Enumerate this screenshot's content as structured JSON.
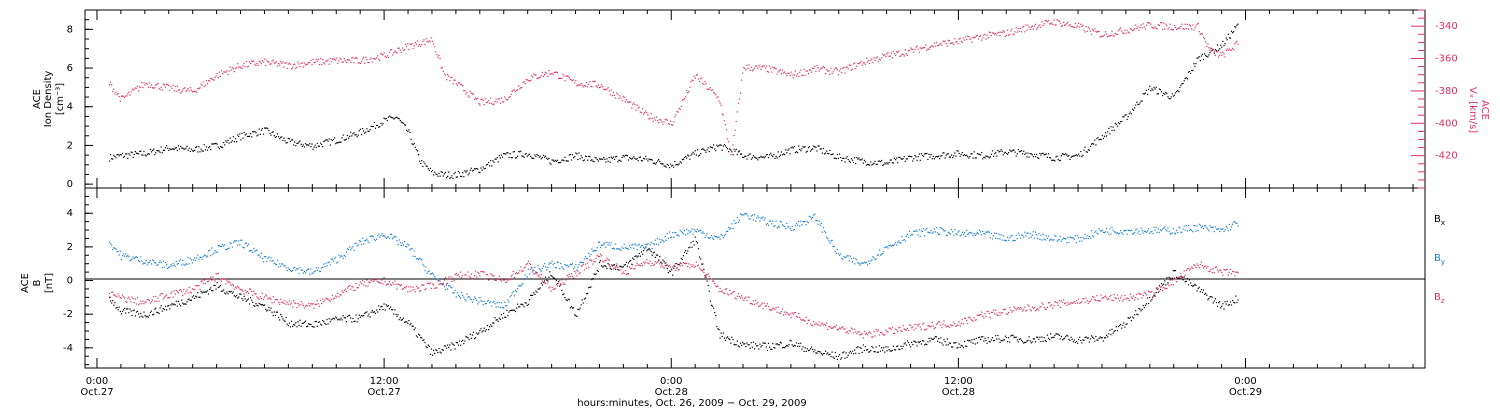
{
  "colors": {
    "axis": "#000000",
    "density": "#000000",
    "velocity": "#e0305f",
    "bx": "#000000",
    "by": "#1a7fd4",
    "bz": "#e0305f"
  },
  "x_axis": {
    "ticks": [
      {
        "h": 0,
        "time": "0:00",
        "day": "Oct.27"
      },
      {
        "h": 12,
        "time": "12:00",
        "day": "Oct.27"
      },
      {
        "h": 24,
        "time": "0:00",
        "day": "Oct.28"
      },
      {
        "h": 36,
        "time": "12:00",
        "day": "Oct.28"
      },
      {
        "h": 48,
        "time": "0:00",
        "day": "Oct.29"
      }
    ],
    "label": "hours:minutes, Oct. 26, 2009 − Oct. 29, 2009",
    "range_hours": [
      -0.5,
      55.5
    ]
  },
  "chart_data": [
    {
      "type": "scatter",
      "panel": "top",
      "ylabel_left": [
        "ACE",
        "Ion Density",
        "[cm⁻³]"
      ],
      "ylabel_right": [
        "ACE",
        "Vₓ [km/s]"
      ],
      "ylim_left": [
        -0.2,
        9.0
      ],
      "yticks_left": [
        0,
        2,
        4,
        6,
        8
      ],
      "ylim_right": [
        -440,
        -330
      ],
      "yticks_right": [
        -340,
        -360,
        -380,
        -400,
        -420
      ],
      "series": [
        {
          "key": "density",
          "axis": "left",
          "x": [
            0.5,
            1,
            2,
            3,
            4,
            5,
            6,
            7,
            8,
            9,
            10,
            11,
            12,
            12.5,
            13,
            13.5,
            14,
            14.5,
            15,
            16,
            17,
            18,
            19,
            20,
            21,
            22,
            23,
            24,
            25,
            26,
            27,
            28,
            29,
            30,
            31,
            32,
            33,
            34,
            35,
            36,
            37,
            38,
            39,
            40,
            41,
            42,
            43,
            44,
            45,
            46,
            47,
            47.7
          ],
          "y": [
            1.4,
            1.5,
            1.6,
            1.9,
            1.8,
            2.0,
            2.5,
            2.8,
            2.2,
            2.0,
            2.3,
            2.7,
            3.3,
            3.5,
            2.7,
            1.2,
            0.6,
            0.5,
            0.5,
            0.8,
            1.5,
            1.6,
            1.2,
            1.5,
            1.2,
            1.4,
            1.3,
            1.0,
            1.6,
            2.0,
            1.5,
            1.4,
            1.8,
            1.9,
            1.4,
            1.2,
            1.1,
            1.4,
            1.5,
            1.6,
            1.5,
            1.7,
            1.6,
            1.4,
            1.5,
            2.5,
            3.5,
            5.0,
            4.5,
            6.5,
            7.2,
            8.3
          ]
        },
        {
          "key": "velocity",
          "axis": "right",
          "x": [
            0.5,
            1,
            2,
            3,
            4,
            5,
            6,
            7,
            8,
            9,
            10,
            11,
            12,
            13,
            13.5,
            14,
            14.5,
            15,
            16,
            17,
            18,
            19,
            20,
            21,
            22,
            23,
            24,
            25,
            26,
            26.5,
            27,
            28,
            29,
            30,
            31,
            32,
            33,
            34,
            35,
            36,
            37,
            38,
            39,
            40,
            41,
            42,
            43,
            44,
            45,
            46,
            46.5,
            47,
            47.7
          ],
          "y": [
            -375,
            -385,
            -375,
            -378,
            -380,
            -370,
            -364,
            -362,
            -364,
            -362,
            -361,
            -361,
            -358,
            -352,
            -350,
            -348,
            -370,
            -375,
            -387,
            -385,
            -372,
            -368,
            -375,
            -376,
            -385,
            -395,
            -400,
            -370,
            -385,
            -420,
            -365,
            -366,
            -370,
            -366,
            -368,
            -362,
            -358,
            -355,
            -351,
            -349,
            -346,
            -344,
            -340,
            -337,
            -340,
            -345,
            -342,
            -339,
            -340,
            -340,
            -355,
            -358,
            -350
          ]
        }
      ]
    },
    {
      "type": "scatter",
      "panel": "bottom",
      "ylabel_left": [
        "ACE",
        "B",
        "[nT]"
      ],
      "ylim": [
        -5.2,
        5.5
      ],
      "yticks": [
        -4,
        -2,
        0,
        2,
        4
      ],
      "legend": [
        {
          "key": "bx",
          "label": "B",
          "sub": "x"
        },
        {
          "key": "by",
          "label": "B",
          "sub": "y"
        },
        {
          "key": "bz",
          "label": "B",
          "sub": "z"
        }
      ],
      "series": [
        {
          "key": "bx",
          "x": [
            0.5,
            1,
            2,
            3,
            4,
            5,
            6,
            7,
            8,
            9,
            10,
            11,
            12,
            13,
            14,
            15,
            16,
            17,
            18,
            19,
            20,
            21,
            22,
            23,
            24,
            25,
            26,
            27,
            28,
            29,
            30,
            31,
            32,
            33,
            34,
            35,
            36,
            37,
            38,
            39,
            40,
            41,
            42,
            43,
            44,
            45,
            46,
            47,
            47.7
          ],
          "y": [
            -1.0,
            -1.8,
            -2.0,
            -1.5,
            -1.0,
            -0.3,
            -1.0,
            -1.5,
            -2.5,
            -2.6,
            -2.3,
            -2.2,
            -1.5,
            -2.5,
            -4.3,
            -3.8,
            -3.0,
            -2.0,
            -1.2,
            0.5,
            -2.0,
            1.0,
            0.8,
            2.0,
            0.5,
            2.5,
            -3.2,
            -3.8,
            -3.9,
            -3.7,
            -4.2,
            -4.5,
            -4.0,
            -4.1,
            -3.7,
            -3.5,
            -3.8,
            -3.5,
            -3.4,
            -3.5,
            -3.3,
            -3.5,
            -3.4,
            -2.5,
            -1.0,
            0.5,
            -0.5,
            -1.5,
            -1.0
          ]
        },
        {
          "key": "by",
          "x": [
            0.5,
            1,
            2,
            3,
            4,
            5,
            6,
            7,
            8,
            9,
            10,
            11,
            12,
            13,
            14,
            15,
            16,
            17,
            18,
            19,
            20,
            21,
            22,
            23,
            24,
            25,
            26,
            27,
            28,
            29,
            30,
            31,
            32,
            33,
            34,
            35,
            36,
            37,
            38,
            39,
            40,
            41,
            42,
            43,
            44,
            45,
            46,
            47,
            47.7
          ],
          "y": [
            2.3,
            1.5,
            1.2,
            0.9,
            1.3,
            1.9,
            2.3,
            1.3,
            0.8,
            0.5,
            1.3,
            2.3,
            2.8,
            2.0,
            0.3,
            -0.8,
            -1.2,
            -1.5,
            0.5,
            1.0,
            0.8,
            2.2,
            2.0,
            2.0,
            2.8,
            3.0,
            2.5,
            4.0,
            3.5,
            3.2,
            3.8,
            1.5,
            1.0,
            2.0,
            2.8,
            3.0,
            2.8,
            2.8,
            2.5,
            2.8,
            2.5,
            2.5,
            3.0,
            3.0,
            3.0,
            3.0,
            3.2,
            3.0,
            3.5
          ]
        },
        {
          "key": "bz",
          "x": [
            0.5,
            1,
            2,
            3,
            4,
            5,
            6,
            7,
            8,
            9,
            10,
            11,
            12,
            13,
            14,
            15,
            16,
            17,
            18,
            19,
            20,
            21,
            22,
            23,
            24,
            25,
            26,
            27,
            28,
            29,
            30,
            31,
            32,
            33,
            34,
            35,
            36,
            37,
            38,
            39,
            40,
            41,
            42,
            43,
            44,
            45,
            46,
            47,
            47.7
          ],
          "y": [
            -0.8,
            -1.0,
            -1.3,
            -0.8,
            -0.5,
            0.3,
            -0.5,
            -1.0,
            -1.3,
            -1.5,
            -0.8,
            -0.2,
            0.0,
            -0.5,
            -0.3,
            0.3,
            0.4,
            0.0,
            1.0,
            -0.5,
            0.5,
            1.5,
            0.5,
            1.2,
            0.8,
            1.0,
            -0.5,
            -1.0,
            -1.5,
            -2.0,
            -2.5,
            -2.8,
            -3.2,
            -3.0,
            -2.8,
            -2.6,
            -2.5,
            -2.0,
            -1.8,
            -1.6,
            -1.4,
            -1.2,
            -1.0,
            -1.0,
            -0.8,
            0.0,
            1.0,
            0.5,
            0.5
          ]
        }
      ]
    }
  ]
}
